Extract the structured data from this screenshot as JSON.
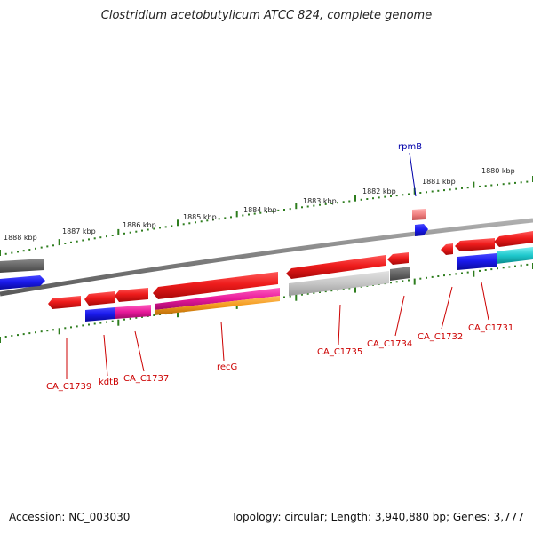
{
  "title": "Clostridium acetobutylicum ATCC 824, complete genome",
  "footer": {
    "accession": "Accession: NC_003030",
    "summary": "Topology: circular; Length: 3,940,880 bp; Genes: 3,777"
  },
  "ticks": {
    "outer": [
      "1888 kbp",
      "1887 kbp",
      "1886 kbp",
      "1885 kbp",
      "1884 kbp",
      "1883 kbp",
      "1882 kbp",
      "1881 kbp",
      "1880 kbp"
    ]
  },
  "gene_labels": {
    "rpmB": "rpmB",
    "CA_C1739": "CA_C1739",
    "kdtB": "kdtB",
    "CA_C1737": "CA_C1737",
    "recG": "recG",
    "CA_C1735": "CA_C1735",
    "CA_C1734": "CA_C1734",
    "CA_C1732": "CA_C1732",
    "CA_C1731": "CA_C1731"
  },
  "colors": {
    "backbone": "#888888",
    "tick_green": "#2e7d1e",
    "gene_red": "#ee1c1c",
    "gene_blue": "#1a1aee",
    "gene_gray_dark": "#6d6d6d",
    "gene_gray_light": "#c8c8c8",
    "gene_pink": "#e8199a",
    "gene_orange": "#f39a1c",
    "gene_cyan": "#1ec8cc",
    "gene_lightred": "#f08080",
    "label_red": "#cc0000",
    "label_blue": "#0000aa"
  }
}
